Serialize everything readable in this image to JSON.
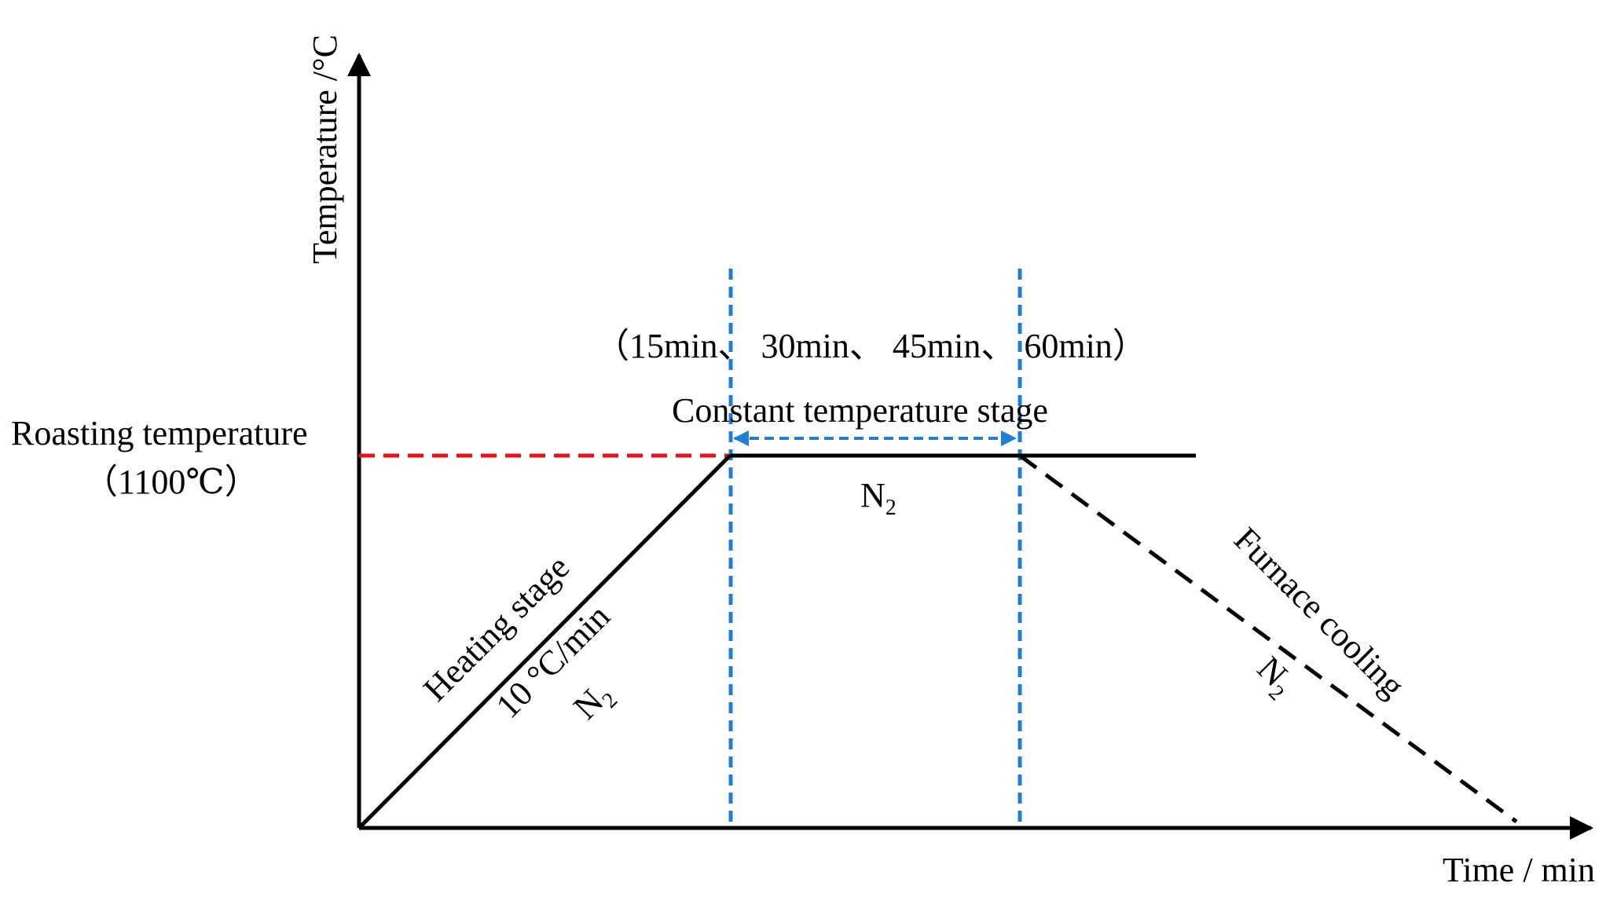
{
  "axes": {
    "y_label": "Temperature /°C",
    "x_label": "Time / min"
  },
  "roasting": {
    "label": "Roasting temperature",
    "value": "（1100℃）"
  },
  "hold_times": "（15min、 30min、 45min、 60min）",
  "constant_stage": {
    "label": "Constant temperature stage",
    "atmosphere": "N",
    "atmosphere_sub": "2"
  },
  "heating_stage": {
    "label": "Heating stage",
    "rate": "10 °C/min",
    "atmosphere": "N",
    "atmosphere_sub": "2"
  },
  "cooling_stage": {
    "label": "Furnace cooling",
    "atmosphere": "N",
    "atmosphere_sub": "2"
  },
  "colors": {
    "curve": "#000000",
    "roasting_guide": "#e8141b",
    "stage_divider": "#1f7fd6"
  }
}
